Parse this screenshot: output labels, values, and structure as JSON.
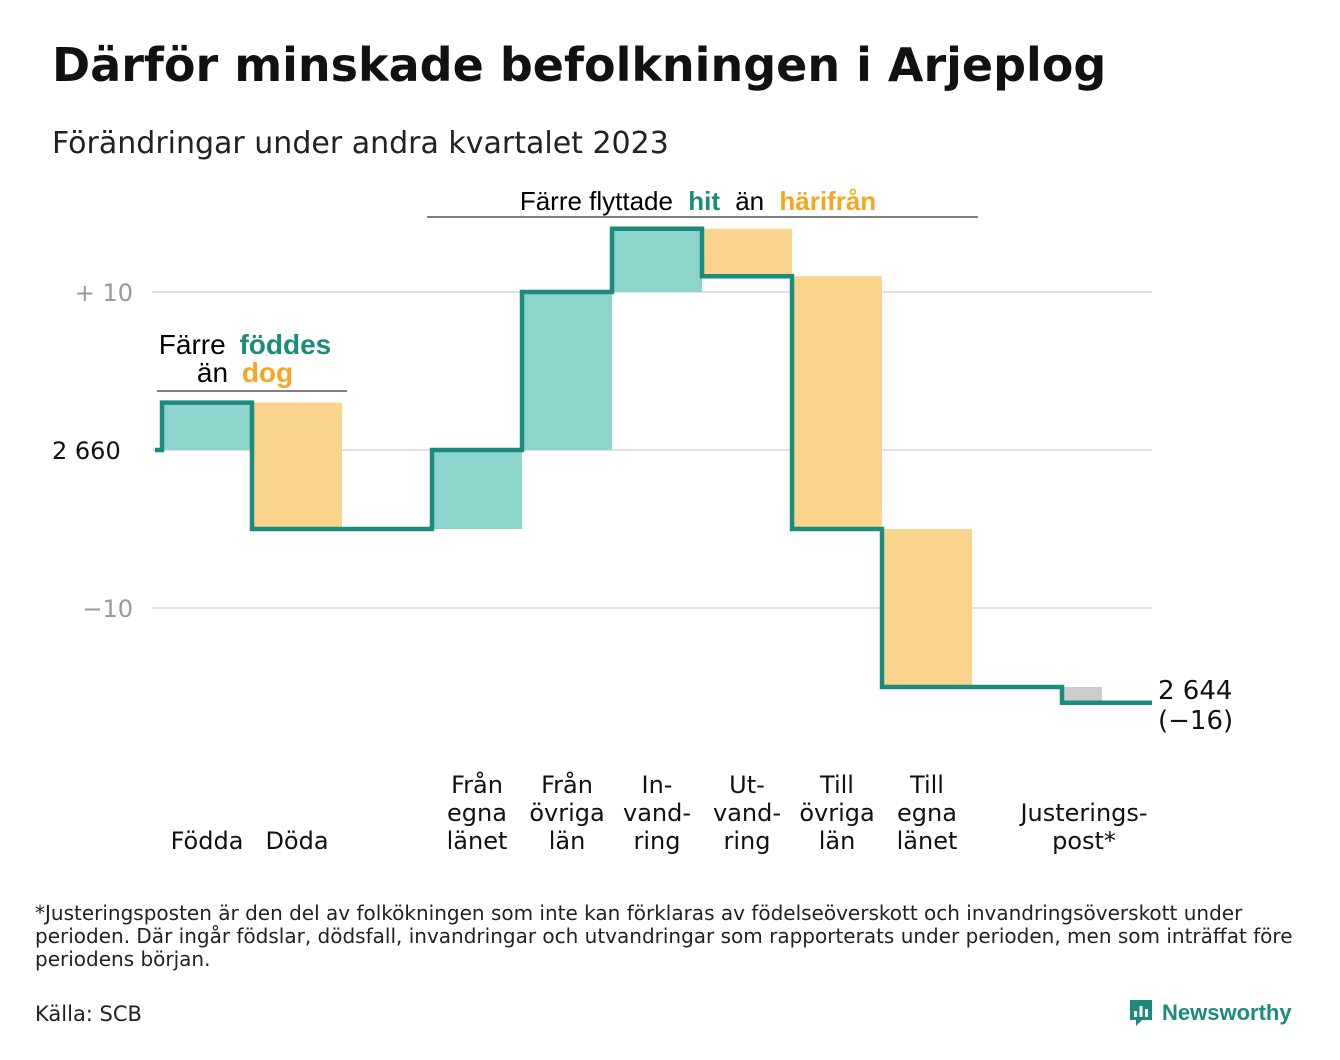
{
  "title": "Därför minskade befolkningen i Arjeplog",
  "subtitle": "Förändringar under andra kvartalet 2023",
  "colors": {
    "line": "#1b8b7d",
    "positive": "#8dd5cc",
    "negative": "#fad48c",
    "adjustment": "#cccccc",
    "teal_text": "#1b8b7d",
    "orange_text": "#f5a623",
    "grid": "#e2e2e2",
    "axis_text": "#999999"
  },
  "annotations": {
    "births": {
      "line1": "Färre",
      "line1_highlight": "föddes",
      "line2": "än",
      "line2_highlight": "dog"
    },
    "migration": {
      "prefix": "Färre flyttade",
      "highlight1": "hit",
      "middle": "än",
      "highlight2": "härifrån"
    }
  },
  "axis": {
    "ticks": [
      {
        "value": 10,
        "label": "+  10"
      },
      {
        "value": 0,
        "label": "2  660"
      },
      {
        "value": -10,
        "label": "−10"
      }
    ]
  },
  "end_label": {
    "line1": "2 644",
    "line2": "(−16)"
  },
  "chart_data": {
    "type": "waterfall",
    "start_value": 2660,
    "end_value": 2644,
    "net_change": -16,
    "ylim": [
      -16,
      14
    ],
    "categories": [
      {
        "label": [
          "Födda"
        ],
        "change": 3,
        "kind": "positive"
      },
      {
        "label": [
          "Döda"
        ],
        "change": -8,
        "kind": "negative"
      },
      {
        "label": [],
        "change": 0,
        "kind": "gap"
      },
      {
        "label": [
          "Från",
          "egna",
          "länet"
        ],
        "change": 5,
        "kind": "positive"
      },
      {
        "label": [
          "Från",
          "övriga",
          "län"
        ],
        "change": 10,
        "kind": "positive"
      },
      {
        "label": [
          "In-",
          "vand-",
          "ring"
        ],
        "change": 4,
        "kind": "positive"
      },
      {
        "label": [
          "Ut-",
          "vand-",
          "ring"
        ],
        "change": -3,
        "kind": "negative"
      },
      {
        "label": [
          "Till",
          "övriga",
          "län"
        ],
        "change": -16,
        "kind": "negative"
      },
      {
        "label": [
          "Till",
          "egna",
          "länet"
        ],
        "change": -10,
        "kind": "negative"
      },
      {
        "label": [],
        "change": 0,
        "kind": "gap"
      },
      {
        "label": [
          "Justerings-",
          "post*"
        ],
        "change": -1,
        "kind": "adjustment"
      }
    ]
  },
  "footnote": "*Justeringsposten är den del av folkökningen som inte kan förklaras av födelseöverskott och invandringsöverskott under perioden. Där ingår födslar, dödsfall, invandringar och utvandringar som rapporterats under perioden, men som inträffat före periodens början.",
  "source": "Källa: SCB",
  "brand": {
    "name": "Newsworthy",
    "icon": "newsworthy-logo-icon"
  }
}
